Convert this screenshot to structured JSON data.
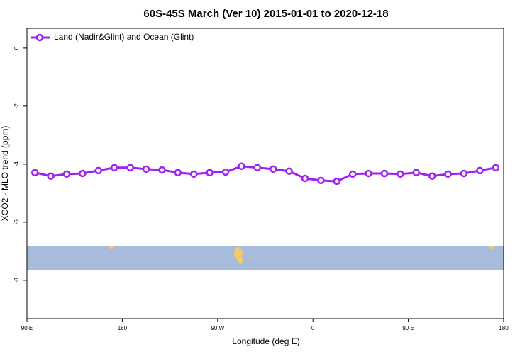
{
  "chart_data": {
    "type": "line",
    "title": "60S-45S March (Ver 10)   2015-01-01 to 2020-12-18",
    "x_label": "Longitude (deg E)",
    "y_label": "XCO2 - MLO trend (ppm)",
    "legend": "top-left",
    "x": [
      97.5,
      112.5,
      127.5,
      142.5,
      157.5,
      172.5,
      187.5,
      202.5,
      217.5,
      232.5,
      247.5,
      262.5,
      277.5,
      292.5,
      307.5,
      322.5,
      337.5,
      352.5,
      367.5,
      382.5,
      397.5,
      412.5,
      427.5,
      442.5,
      457.5,
      472.5,
      487.5,
      502.5,
      517.5,
      532.5
    ],
    "series": [
      {
        "name": "Land (Nadir&Glint) and Ocean (Glint)",
        "color": "#a020f0",
        "values": [
          -4.29,
          -4.41,
          -4.34,
          -4.32,
          -4.22,
          -4.12,
          -4.12,
          -4.17,
          -4.2,
          -4.29,
          -4.34,
          -4.29,
          -4.27,
          -4.07,
          -4.12,
          -4.17,
          -4.24,
          -4.49,
          -4.56,
          -4.59,
          -4.34,
          -4.32,
          -4.32,
          -4.34,
          -4.29,
          -4.41,
          -4.34,
          -4.32,
          -4.22,
          -4.12
        ]
      }
    ],
    "xlim": [
      90,
      540
    ],
    "xticks": [
      {
        "value": 90,
        "label": "90 E"
      },
      180,
      {
        "value": 270,
        "label": "90 W"
      },
      {
        "value": 360,
        "label": "0"
      },
      {
        "value": 450,
        "label": "90 E"
      },
      {
        "value": 540,
        "label": "180"
      }
    ],
    "ylim": [
      -9.32,
      0.68
    ],
    "yticks": [
      0,
      -2,
      -4,
      -6,
      -8
    ]
  }
}
